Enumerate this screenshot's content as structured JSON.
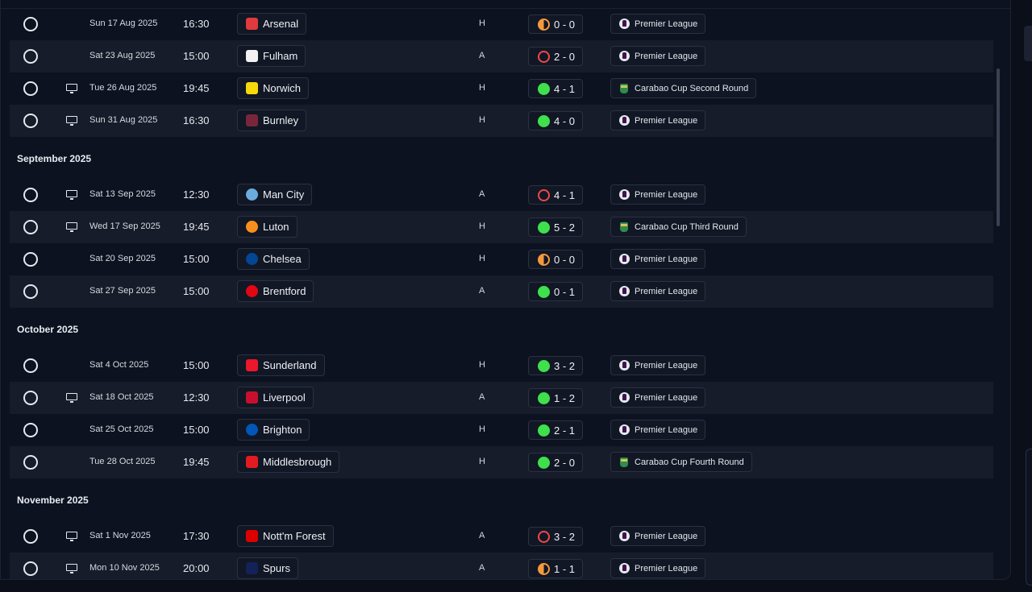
{
  "fixtures": [
    {
      "type": "match",
      "alt": false,
      "tv": false,
      "date": "Sun 17 Aug 2025",
      "time": "16:30",
      "team": "Arsenal",
      "badge_color": "#e03a3e",
      "badge_round": false,
      "venue": "H",
      "result": "draw",
      "score": "0 - 0",
      "competition": "Premier League",
      "comp_icon": "premier-league"
    },
    {
      "type": "match",
      "alt": true,
      "tv": false,
      "date": "Sat 23 Aug 2025",
      "time": "15:00",
      "team": "Fulham",
      "badge_color": "#f2f2f2",
      "badge_round": false,
      "venue": "A",
      "result": "loss",
      "score": "2 - 0",
      "competition": "Premier League",
      "comp_icon": "premier-league"
    },
    {
      "type": "match",
      "alt": false,
      "tv": true,
      "date": "Tue 26 Aug 2025",
      "time": "19:45",
      "team": "Norwich",
      "badge_color": "#f5d90a",
      "badge_round": false,
      "venue": "H",
      "result": "win",
      "score": "4 - 1",
      "competition": "Carabao Cup Second Round",
      "comp_icon": "carabao-cup"
    },
    {
      "type": "match",
      "alt": true,
      "tv": true,
      "date": "Sun 31 Aug 2025",
      "time": "16:30",
      "team": "Burnley",
      "badge_color": "#7a263a",
      "badge_round": false,
      "venue": "H",
      "result": "win",
      "score": "4 - 0",
      "competition": "Premier League",
      "comp_icon": "premier-league"
    },
    {
      "type": "header",
      "label": "September 2025"
    },
    {
      "type": "match",
      "alt": false,
      "tv": true,
      "date": "Sat 13 Sep 2025",
      "time": "12:30",
      "team": "Man City",
      "badge_color": "#6cabdd",
      "badge_round": true,
      "venue": "A",
      "result": "loss",
      "score": "4 - 1",
      "competition": "Premier League",
      "comp_icon": "premier-league"
    },
    {
      "type": "match",
      "alt": true,
      "tv": true,
      "date": "Wed 17 Sep 2025",
      "time": "19:45",
      "team": "Luton",
      "badge_color": "#f78f1e",
      "badge_round": true,
      "venue": "H",
      "result": "win",
      "score": "5 - 2",
      "competition": "Carabao Cup Third Round",
      "comp_icon": "carabao-cup"
    },
    {
      "type": "match",
      "alt": false,
      "tv": false,
      "date": "Sat 20 Sep 2025",
      "time": "15:00",
      "team": "Chelsea",
      "badge_color": "#034694",
      "badge_round": true,
      "venue": "H",
      "result": "draw",
      "score": "0 - 0",
      "competition": "Premier League",
      "comp_icon": "premier-league"
    },
    {
      "type": "match",
      "alt": true,
      "tv": false,
      "date": "Sat 27 Sep 2025",
      "time": "15:00",
      "team": "Brentford",
      "badge_color": "#e30613",
      "badge_round": true,
      "venue": "A",
      "result": "win",
      "score": "0 - 1",
      "competition": "Premier League",
      "comp_icon": "premier-league"
    },
    {
      "type": "header",
      "label": "October 2025"
    },
    {
      "type": "match",
      "alt": false,
      "tv": false,
      "date": "Sat 4 Oct 2025",
      "time": "15:00",
      "team": "Sunderland",
      "badge_color": "#eb172b",
      "badge_round": false,
      "venue": "H",
      "result": "win",
      "score": "3 - 2",
      "competition": "Premier League",
      "comp_icon": "premier-league"
    },
    {
      "type": "match",
      "alt": true,
      "tv": true,
      "date": "Sat 18 Oct 2025",
      "time": "12:30",
      "team": "Liverpool",
      "badge_color": "#c8102e",
      "badge_round": false,
      "venue": "A",
      "result": "win",
      "score": "1 - 2",
      "competition": "Premier League",
      "comp_icon": "premier-league"
    },
    {
      "type": "match",
      "alt": false,
      "tv": false,
      "date": "Sat 25 Oct 2025",
      "time": "15:00",
      "team": "Brighton",
      "badge_color": "#0057b8",
      "badge_round": true,
      "venue": "H",
      "result": "win",
      "score": "2 - 1",
      "competition": "Premier League",
      "comp_icon": "premier-league"
    },
    {
      "type": "match",
      "alt": true,
      "tv": false,
      "date": "Tue 28 Oct 2025",
      "time": "19:45",
      "team": "Middlesbrough",
      "badge_color": "#e11b22",
      "badge_round": false,
      "venue": "H",
      "result": "win",
      "score": "2 - 0",
      "competition": "Carabao Cup Fourth Round",
      "comp_icon": "carabao-cup"
    },
    {
      "type": "header",
      "label": "November 2025"
    },
    {
      "type": "match",
      "alt": false,
      "tv": true,
      "date": "Sat 1 Nov 2025",
      "time": "17:30",
      "team": "Nott'm Forest",
      "badge_color": "#dd0000",
      "badge_round": false,
      "venue": "A",
      "result": "loss",
      "score": "3 - 2",
      "competition": "Premier League",
      "comp_icon": "premier-league"
    },
    {
      "type": "match",
      "alt": true,
      "tv": true,
      "date": "Mon 10 Nov 2025",
      "time": "20:00",
      "team": "Spurs",
      "badge_color": "#132257",
      "badge_round": false,
      "venue": "A",
      "result": "draw",
      "score": "1 - 1",
      "competition": "Premier League",
      "comp_icon": "premier-league"
    }
  ]
}
